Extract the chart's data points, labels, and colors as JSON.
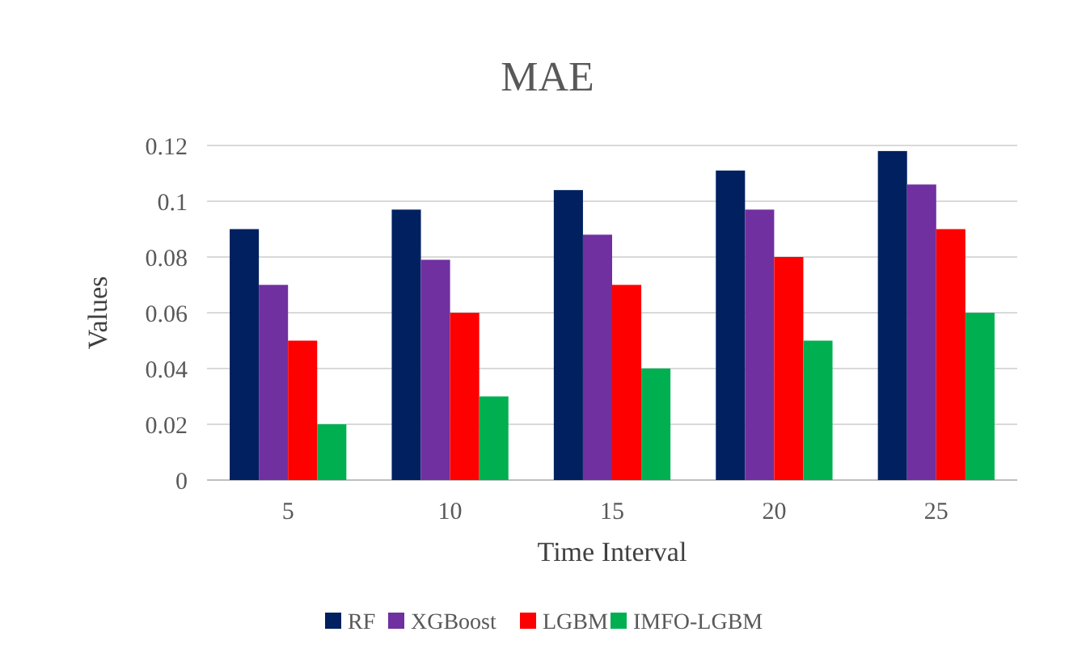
{
  "chart_data": {
    "type": "bar",
    "title": "MAE",
    "xlabel": "Time Interval",
    "ylabel": "Values",
    "categories": [
      "5",
      "10",
      "15",
      "20",
      "25"
    ],
    "series": [
      {
        "name": "RF",
        "color": "#002060",
        "values": [
          0.09,
          0.097,
          0.104,
          0.111,
          0.118
        ]
      },
      {
        "name": "XGBoost",
        "color": "#7030a0",
        "values": [
          0.07,
          0.079,
          0.088,
          0.097,
          0.106
        ]
      },
      {
        "name": "LGBM",
        "color": "#ff0000",
        "values": [
          0.05,
          0.06,
          0.07,
          0.08,
          0.09
        ]
      },
      {
        "name": "IMFO-LGBM",
        "color": "#00b050",
        "values": [
          0.02,
          0.03,
          0.04,
          0.05,
          0.06
        ]
      }
    ],
    "ylim": [
      0,
      0.12
    ],
    "yticks": [
      0,
      0.02,
      0.04,
      0.06,
      0.08,
      0.1,
      0.12
    ],
    "grid": "y",
    "legend": "bottom"
  }
}
